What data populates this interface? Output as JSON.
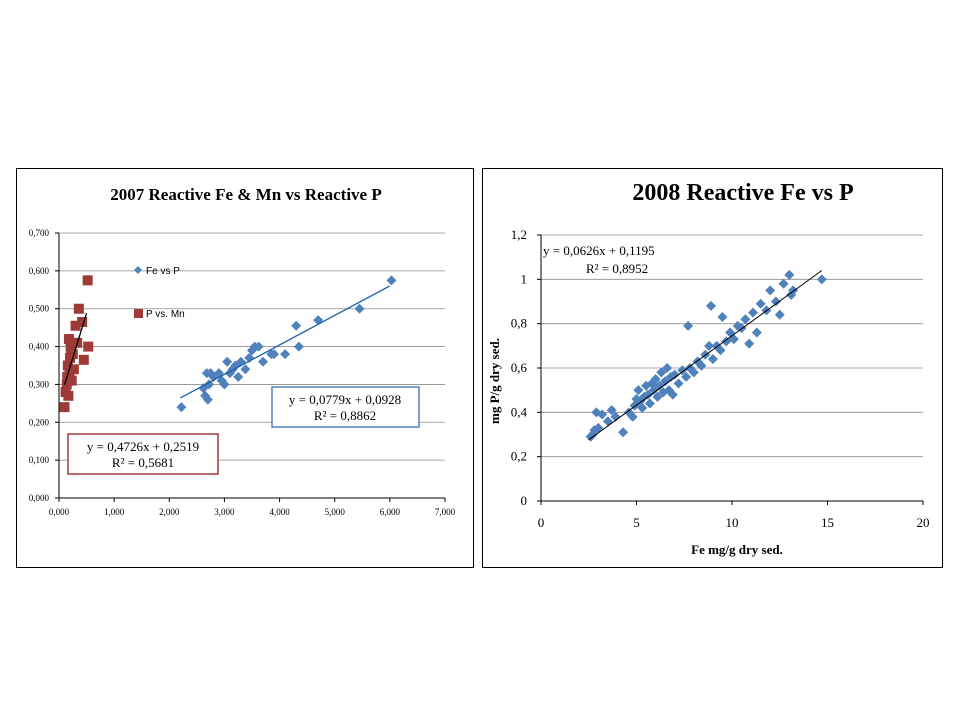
{
  "chart_data": [
    {
      "type": "scatter",
      "title": "2007 Reactive Fe & Mn vs Reactive P",
      "xlabel": "",
      "ylabel": "",
      "xlim": [
        0,
        7
      ],
      "ylim": [
        0,
        0.7
      ],
      "x_ticks": [
        "0,000",
        "1,000",
        "2,000",
        "3,000",
        "4,000",
        "5,000",
        "6,000",
        "7,000"
      ],
      "y_ticks": [
        "0,000",
        "0,100",
        "0,200",
        "0,300",
        "0,400",
        "0,500",
        "0,600",
        "0,700"
      ],
      "grid": true,
      "legend_position": "top-right (inside plot)",
      "colors": {
        "fe": "#4F81BD",
        "mn": "#9E3B38",
        "trend": "#000000"
      },
      "series": [
        {
          "name": "Fe vs P",
          "marker": "diamond",
          "points": [
            [
              2.22,
              0.24
            ],
            [
              2.62,
              0.29
            ],
            [
              2.65,
              0.27
            ],
            [
              2.68,
              0.33
            ],
            [
              2.7,
              0.26
            ],
            [
              2.72,
              0.3
            ],
            [
              2.75,
              0.33
            ],
            [
              2.8,
              0.32
            ],
            [
              2.9,
              0.33
            ],
            [
              2.95,
              0.31
            ],
            [
              3.0,
              0.3
            ],
            [
              3.05,
              0.36
            ],
            [
              3.1,
              0.33
            ],
            [
              3.15,
              0.34
            ],
            [
              3.2,
              0.35
            ],
            [
              3.25,
              0.32
            ],
            [
              3.3,
              0.36
            ],
            [
              3.38,
              0.34
            ],
            [
              3.45,
              0.37
            ],
            [
              3.5,
              0.39
            ],
            [
              3.55,
              0.4
            ],
            [
              3.62,
              0.4
            ],
            [
              3.7,
              0.36
            ],
            [
              3.85,
              0.38
            ],
            [
              3.9,
              0.38
            ],
            [
              4.1,
              0.38
            ],
            [
              4.3,
              0.455
            ],
            [
              4.35,
              0.4
            ],
            [
              4.7,
              0.47
            ],
            [
              5.45,
              0.5
            ],
            [
              6.03,
              0.575
            ]
          ]
        },
        {
          "name": "P vs. Mn",
          "marker": "square",
          "points": [
            [
              0.1,
              0.24
            ],
            [
              0.12,
              0.28
            ],
            [
              0.14,
              0.3
            ],
            [
              0.15,
              0.32
            ],
            [
              0.16,
              0.35
            ],
            [
              0.17,
              0.27
            ],
            [
              0.18,
              0.42
            ],
            [
              0.19,
              0.33
            ],
            [
              0.2,
              0.37
            ],
            [
              0.21,
              0.4
            ],
            [
              0.22,
              0.39
            ],
            [
              0.23,
              0.31
            ],
            [
              0.25,
              0.38
            ],
            [
              0.27,
              0.34
            ],
            [
              0.3,
              0.455
            ],
            [
              0.33,
              0.41
            ],
            [
              0.36,
              0.5
            ],
            [
              0.42,
              0.465
            ],
            [
              0.45,
              0.365
            ],
            [
              0.52,
              0.575
            ],
            [
              0.53,
              0.4
            ]
          ]
        }
      ],
      "trendlines": [
        {
          "series": "Fe vs P",
          "slope": 0.0779,
          "intercept": 0.0928,
          "x_range": [
            2.2,
            6.0
          ],
          "equation": "y = 0,0779x + 0,0928",
          "r2": "R² = 0,8862"
        },
        {
          "series": "P vs. Mn",
          "slope": 0.4726,
          "intercept": 0.2519,
          "x_range": [
            0.1,
            0.5
          ],
          "equation": "y = 0,4726x + 0,2519",
          "r2": "R² = 0,5681"
        }
      ]
    },
    {
      "type": "scatter",
      "title": "2008 Reactive Fe vs P",
      "xlabel": "Fe mg/g dry sed.",
      "ylabel": "mg P/g dry sed.",
      "xlim": [
        0,
        20
      ],
      "ylim": [
        0,
        1.2
      ],
      "x_ticks": [
        "0",
        "5",
        "10",
        "15",
        "20"
      ],
      "y_ticks": [
        "0",
        "0,2",
        "0,4",
        "0,6",
        "0,8",
        "1",
        "1,2"
      ],
      "grid": true,
      "colors": {
        "points": "#4F81BD",
        "trend": "#000000"
      },
      "series": [
        {
          "name": "",
          "marker": "diamond",
          "points": [
            [
              2.6,
              0.29
            ],
            [
              2.7,
              0.3
            ],
            [
              2.8,
              0.32
            ],
            [
              2.9,
              0.4
            ],
            [
              3.0,
              0.33
            ],
            [
              3.2,
              0.39
            ],
            [
              3.5,
              0.36
            ],
            [
              3.7,
              0.41
            ],
            [
              3.9,
              0.38
            ],
            [
              4.3,
              0.31
            ],
            [
              4.6,
              0.4
            ],
            [
              4.8,
              0.38
            ],
            [
              4.9,
              0.43
            ],
            [
              5.0,
              0.46
            ],
            [
              5.1,
              0.5
            ],
            [
              5.2,
              0.45
            ],
            [
              5.3,
              0.42
            ],
            [
              5.4,
              0.47
            ],
            [
              5.5,
              0.52
            ],
            [
              5.6,
              0.48
            ],
            [
              5.7,
              0.44
            ],
            [
              5.8,
              0.53
            ],
            [
              5.9,
              0.5
            ],
            [
              6.0,
              0.55
            ],
            [
              6.1,
              0.47
            ],
            [
              6.2,
              0.52
            ],
            [
              6.3,
              0.58
            ],
            [
              6.4,
              0.49
            ],
            [
              6.5,
              0.54
            ],
            [
              6.6,
              0.6
            ],
            [
              6.7,
              0.5
            ],
            [
              6.8,
              0.56
            ],
            [
              6.9,
              0.48
            ],
            [
              7.0,
              0.57
            ],
            [
              7.2,
              0.53
            ],
            [
              7.4,
              0.59
            ],
            [
              7.6,
              0.56
            ],
            [
              7.7,
              0.79
            ],
            [
              7.8,
              0.6
            ],
            [
              8.0,
              0.58
            ],
            [
              8.2,
              0.63
            ],
            [
              8.4,
              0.61
            ],
            [
              8.6,
              0.66
            ],
            [
              8.8,
              0.7
            ],
            [
              8.9,
              0.88
            ],
            [
              9.0,
              0.64
            ],
            [
              9.2,
              0.7
            ],
            [
              9.4,
              0.68
            ],
            [
              9.5,
              0.83
            ],
            [
              9.7,
              0.72
            ],
            [
              9.9,
              0.76
            ],
            [
              10.1,
              0.73
            ],
            [
              10.3,
              0.79
            ],
            [
              10.5,
              0.78
            ],
            [
              10.7,
              0.82
            ],
            [
              10.9,
              0.71
            ],
            [
              11.1,
              0.85
            ],
            [
              11.3,
              0.76
            ],
            [
              11.5,
              0.89
            ],
            [
              11.8,
              0.86
            ],
            [
              12.0,
              0.95
            ],
            [
              12.3,
              0.9
            ],
            [
              12.5,
              0.84
            ],
            [
              12.7,
              0.98
            ],
            [
              13.0,
              1.02
            ],
            [
              13.1,
              0.93
            ],
            [
              13.2,
              0.95
            ],
            [
              14.7,
              1.0
            ]
          ]
        }
      ],
      "trendlines": [
        {
          "slope": 0.0626,
          "intercept": 0.1195,
          "x_range": [
            2.5,
            14.7
          ],
          "equation": "y = 0,0626x + 0,1195",
          "r2": "R² = 0,8952"
        }
      ]
    }
  ]
}
